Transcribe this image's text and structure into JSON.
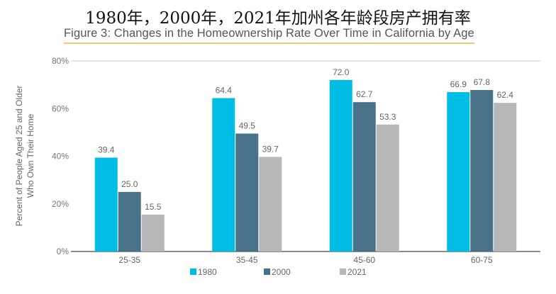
{
  "title": "1980年，2000年，2021年加州各年龄段房产拥有率",
  "subtitle": "Figure 3: Changes in the Homeownership Rate Over Time in California by Age",
  "chart_data": {
    "type": "bar",
    "categories": [
      "25-35",
      "35-45",
      "45-60",
      "60-75"
    ],
    "series": [
      {
        "name": "1980",
        "values": [
          39.4,
          64.4,
          72.0,
          66.9
        ],
        "color": "#00BDE5"
      },
      {
        "name": "2000",
        "values": [
          25.0,
          49.5,
          62.7,
          67.8
        ],
        "color": "#48728A"
      },
      {
        "name": "2021",
        "values": [
          15.5,
          39.7,
          53.3,
          62.4
        ],
        "color": "#B7B7B7"
      }
    ],
    "data_labels": [
      [
        "39.4",
        "64.4",
        "72.0",
        "66.9"
      ],
      [
        "25.0",
        "49.5",
        "62.7",
        "67.8"
      ],
      [
        "15.5",
        "39.7",
        "53.3",
        "62.4"
      ]
    ],
    "ylabel_lines": [
      "Percent of People Aged 25 and Older",
      "Who Own Their Home"
    ],
    "yticks": [
      "0%",
      "20%",
      "40%",
      "60%",
      "80%"
    ],
    "ylim": [
      0,
      80
    ],
    "grid": "top line only",
    "legend": "bottom"
  }
}
